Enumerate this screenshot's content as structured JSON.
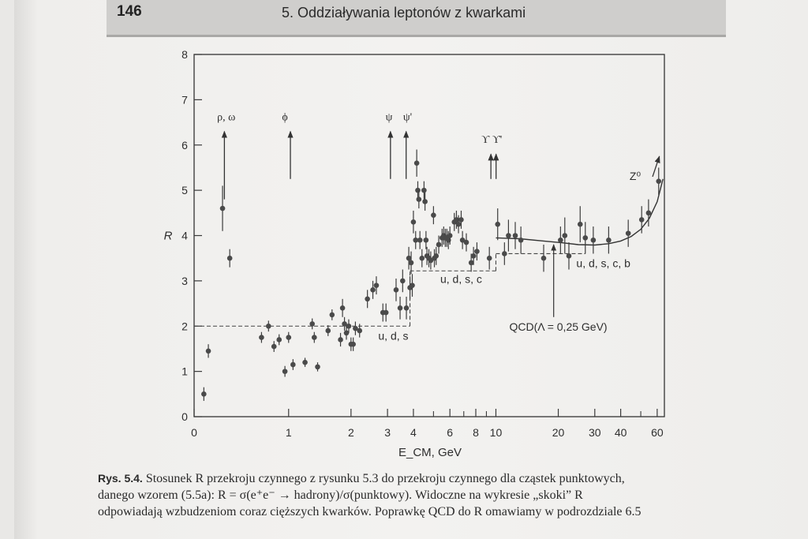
{
  "header": {
    "page_number": "146",
    "chapter_title": "5. Oddziaływania leptonów z kwarkami"
  },
  "caption": {
    "label": "Rys. 5.4.",
    "line1": "Stosunek R przekroju czynnego z rysunku 5.3 do przekroju czynnego dla cząstek punktowych,",
    "line2": "danego wzorem (5.5a): R = σ(e⁺e⁻ → hadrony)/σ(punktowy). Widoczne na wykresie „skoki” R",
    "line3": "odpowiadają wzbudzeniom coraz cięższych kwarków. Poprawkę QCD do R omawiamy w podrozdziale 6.5"
  },
  "chart_data": {
    "type": "scatter",
    "xlabel": "E_CM, GeV",
    "ylabel": "R",
    "xscale": "log",
    "xlim": [
      0.35,
      65
    ],
    "ylim": [
      0,
      8
    ],
    "x_ticks": [
      {
        "value": 0.35,
        "label": "0"
      },
      {
        "value": 1,
        "label": "1"
      },
      {
        "value": 2,
        "label": "2"
      },
      {
        "value": 3,
        "label": "3"
      },
      {
        "value": 4,
        "label": "4"
      },
      {
        "value": 6,
        "label": "6"
      },
      {
        "value": 8,
        "label": "8"
      },
      {
        "value": 10,
        "label": "10"
      },
      {
        "value": 20,
        "label": "20"
      },
      {
        "value": 30,
        "label": "30"
      },
      {
        "value": 40,
        "label": "40"
      },
      {
        "value": 60,
        "label": "60"
      }
    ],
    "x_minor_ticks": [
      5,
      7,
      9,
      50
    ],
    "y_ticks": [
      0,
      1,
      2,
      3,
      4,
      5,
      6,
      7,
      8
    ],
    "points": [
      {
        "x": 0.39,
        "y": 0.5,
        "err": 0.15
      },
      {
        "x": 0.41,
        "y": 1.45,
        "err": 0.15
      },
      {
        "x": 0.48,
        "y": 4.6,
        "err": 0.5
      },
      {
        "x": 0.52,
        "y": 3.5,
        "err": 0.2
      },
      {
        "x": 0.74,
        "y": 1.75,
        "err": 0.12
      },
      {
        "x": 0.8,
        "y": 2.0,
        "err": 0.12
      },
      {
        "x": 0.85,
        "y": 1.55,
        "err": 0.12
      },
      {
        "x": 0.9,
        "y": 1.7,
        "err": 0.12
      },
      {
        "x": 0.96,
        "y": 1.0,
        "err": 0.12
      },
      {
        "x": 1.0,
        "y": 1.75,
        "err": 0.12
      },
      {
        "x": 1.05,
        "y": 1.15,
        "err": 0.12
      },
      {
        "x": 1.2,
        "y": 1.2,
        "err": 0.1
      },
      {
        "x": 1.3,
        "y": 2.05,
        "err": 0.12
      },
      {
        "x": 1.33,
        "y": 1.75,
        "err": 0.12
      },
      {
        "x": 1.38,
        "y": 1.1,
        "err": 0.1
      },
      {
        "x": 1.55,
        "y": 1.9,
        "err": 0.12
      },
      {
        "x": 1.62,
        "y": 2.25,
        "err": 0.12
      },
      {
        "x": 1.78,
        "y": 1.7,
        "err": 0.15
      },
      {
        "x": 1.82,
        "y": 2.4,
        "err": 0.2
      },
      {
        "x": 1.86,
        "y": 2.05,
        "err": 0.15
      },
      {
        "x": 1.9,
        "y": 1.85,
        "err": 0.15
      },
      {
        "x": 1.95,
        "y": 2.0,
        "err": 0.15
      },
      {
        "x": 2.0,
        "y": 1.6,
        "err": 0.15
      },
      {
        "x": 2.05,
        "y": 1.6,
        "err": 0.15
      },
      {
        "x": 2.1,
        "y": 1.95,
        "err": 0.15
      },
      {
        "x": 2.2,
        "y": 1.9,
        "err": 0.15
      },
      {
        "x": 2.4,
        "y": 2.6,
        "err": 0.2
      },
      {
        "x": 2.55,
        "y": 2.8,
        "err": 0.2
      },
      {
        "x": 2.65,
        "y": 2.9,
        "err": 0.2
      },
      {
        "x": 2.85,
        "y": 2.3,
        "err": 0.2
      },
      {
        "x": 2.95,
        "y": 2.3,
        "err": 0.2
      },
      {
        "x": 3.3,
        "y": 2.8,
        "err": 0.25
      },
      {
        "x": 3.45,
        "y": 2.4,
        "err": 0.25
      },
      {
        "x": 3.55,
        "y": 3.0,
        "err": 0.25
      },
      {
        "x": 3.7,
        "y": 2.4,
        "err": 0.25
      },
      {
        "x": 3.8,
        "y": 3.5,
        "err": 0.25
      },
      {
        "x": 3.85,
        "y": 2.85,
        "err": 0.25
      },
      {
        "x": 3.9,
        "y": 3.4,
        "err": 0.25
      },
      {
        "x": 3.95,
        "y": 2.9,
        "err": 0.25
      },
      {
        "x": 4.0,
        "y": 4.3,
        "err": 0.25
      },
      {
        "x": 4.1,
        "y": 3.9,
        "err": 0.2
      },
      {
        "x": 4.15,
        "y": 5.6,
        "err": 0.3
      },
      {
        "x": 4.2,
        "y": 5.0,
        "err": 0.2
      },
      {
        "x": 4.25,
        "y": 4.8,
        "err": 0.2
      },
      {
        "x": 4.3,
        "y": 3.9,
        "err": 0.2
      },
      {
        "x": 4.4,
        "y": 3.5,
        "err": 0.2
      },
      {
        "x": 4.5,
        "y": 5.0,
        "err": 0.2
      },
      {
        "x": 4.55,
        "y": 4.75,
        "err": 0.2
      },
      {
        "x": 4.6,
        "y": 3.9,
        "err": 0.2
      },
      {
        "x": 4.65,
        "y": 3.55,
        "err": 0.2
      },
      {
        "x": 4.75,
        "y": 3.5,
        "err": 0.2
      },
      {
        "x": 4.85,
        "y": 3.45,
        "err": 0.2
      },
      {
        "x": 5.0,
        "y": 4.45,
        "err": 0.2
      },
      {
        "x": 5.05,
        "y": 3.5,
        "err": 0.2
      },
      {
        "x": 5.15,
        "y": 3.55,
        "err": 0.2
      },
      {
        "x": 5.3,
        "y": 3.8,
        "err": 0.2
      },
      {
        "x": 5.5,
        "y": 3.95,
        "err": 0.2
      },
      {
        "x": 5.6,
        "y": 4.0,
        "err": 0.2
      },
      {
        "x": 5.7,
        "y": 3.95,
        "err": 0.2
      },
      {
        "x": 5.8,
        "y": 3.95,
        "err": 0.2
      },
      {
        "x": 5.9,
        "y": 3.9,
        "err": 0.2
      },
      {
        "x": 6.0,
        "y": 4.0,
        "err": 0.2
      },
      {
        "x": 6.3,
        "y": 4.3,
        "err": 0.2
      },
      {
        "x": 6.45,
        "y": 4.35,
        "err": 0.2
      },
      {
        "x": 6.6,
        "y": 4.25,
        "err": 0.2
      },
      {
        "x": 6.8,
        "y": 4.35,
        "err": 0.2
      },
      {
        "x": 6.9,
        "y": 3.9,
        "err": 0.2
      },
      {
        "x": 7.2,
        "y": 3.85,
        "err": 0.2
      },
      {
        "x": 7.6,
        "y": 3.4,
        "err": 0.2
      },
      {
        "x": 7.8,
        "y": 3.55,
        "err": 0.2
      },
      {
        "x": 8.1,
        "y": 3.65,
        "err": 0.2
      },
      {
        "x": 9.3,
        "y": 3.5,
        "err": 0.25
      },
      {
        "x": 10.2,
        "y": 4.25,
        "err": 0.35
      },
      {
        "x": 11.0,
        "y": 3.6,
        "err": 0.25
      },
      {
        "x": 11.5,
        "y": 4.0,
        "err": 0.35
      },
      {
        "x": 12.4,
        "y": 4.0,
        "err": 0.3
      },
      {
        "x": 13.2,
        "y": 3.9,
        "err": 0.3
      },
      {
        "x": 17.0,
        "y": 3.5,
        "err": 0.3
      },
      {
        "x": 20.5,
        "y": 3.9,
        "err": 0.3
      },
      {
        "x": 21.5,
        "y": 4.0,
        "err": 0.4
      },
      {
        "x": 22.5,
        "y": 3.55,
        "err": 0.3
      },
      {
        "x": 25.5,
        "y": 4.25,
        "err": 0.4
      },
      {
        "x": 27.0,
        "y": 3.95,
        "err": 0.35
      },
      {
        "x": 29.5,
        "y": 3.9,
        "err": 0.3
      },
      {
        "x": 35.0,
        "y": 3.9,
        "err": 0.3
      },
      {
        "x": 43.5,
        "y": 4.05,
        "err": 0.3
      },
      {
        "x": 50.5,
        "y": 4.35,
        "err": 0.3
      },
      {
        "x": 54.5,
        "y": 4.5,
        "err": 0.3
      },
      {
        "x": 61.0,
        "y": 5.2,
        "err": 0.3
      }
    ],
    "parton_model_levels": [
      {
        "x_from": 0.35,
        "x_to": 3.85,
        "y": 2.0,
        "label": "u, d, s",
        "label_x": 3.2,
        "label_y": 1.7
      },
      {
        "x_from": 3.85,
        "x_to": 10.0,
        "y": 3.22,
        "label": "u, d, s, c",
        "label_x": 6.8,
        "label_y": 2.95
      },
      {
        "x_from": 10.0,
        "x_to": 27.0,
        "y": 3.6,
        "label": "u, d, s, c, b",
        "label_x": 33,
        "label_y": 3.3
      }
    ],
    "qcd_curve": [
      [
        10,
        3.95
      ],
      [
        13,
        3.93
      ],
      [
        17,
        3.88
      ],
      [
        21,
        3.84
      ],
      [
        25,
        3.8
      ],
      [
        30,
        3.79
      ],
      [
        35,
        3.82
      ],
      [
        40,
        3.88
      ],
      [
        45,
        3.98
      ],
      [
        50,
        4.14
      ],
      [
        55,
        4.38
      ],
      [
        60,
        4.75
      ],
      [
        64,
        5.25
      ]
    ],
    "qcd_label": {
      "text": "QCD(Λ = 0,25 GeV)",
      "x": 20,
      "y": 1.9,
      "arrow_x": 19.0,
      "arrow_from_y": 2.2,
      "arrow_to_y": 3.8
    },
    "resonances": [
      {
        "label": "ρ, ω",
        "label_x": 0.5,
        "x": [
          0.49
        ],
        "from_y": 4.8,
        "to_y": 6.3
      },
      {
        "label": "ϕ",
        "label_x": 0.96,
        "x": [
          1.02
        ],
        "from_y": 5.25,
        "to_y": 6.3
      },
      {
        "label": "ψ",
        "label_x": 3.05,
        "x": [
          3.1
        ],
        "from_y": 5.25,
        "to_y": 6.3
      },
      {
        "label": "ψ'",
        "label_x": 3.75,
        "x": [
          3.69
        ],
        "from_y": 5.25,
        "to_y": 6.3
      },
      {
        "label": "ϒ ϒ'",
        "label_x": 9.55,
        "x": [
          9.46,
          10.02
        ],
        "from_y": 5.25,
        "to_y": 5.8
      }
    ],
    "z0_label": {
      "text": "Z⁰",
      "x": 50.0,
      "y": 5.3,
      "arrow_from_x": 57.0,
      "arrow_from_y": 5.3,
      "arrow_to_x": 61.5,
      "arrow_to_y": 5.75
    }
  }
}
